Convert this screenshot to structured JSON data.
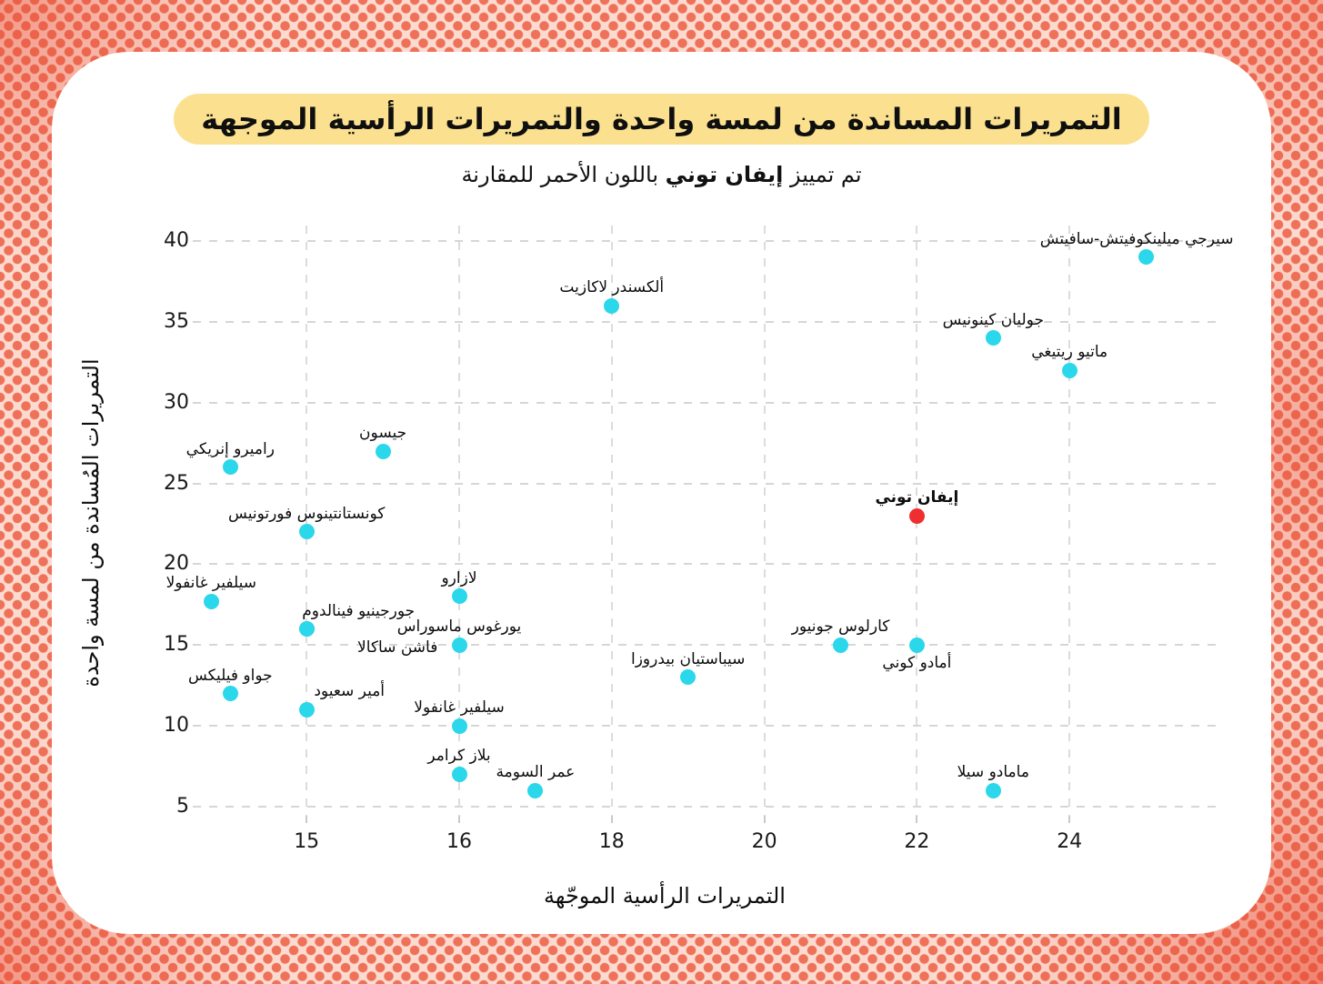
{
  "header": {
    "title": "التمريرات المساندة من لمسة واحدة والتمريرات الرأسية الموجهة",
    "title_highlight_color": "#fbe18f",
    "subtitle_prefix": "تم تمييز ",
    "subtitle_highlight": "إيفان توني",
    "subtitle_suffix": " باللون الأحمر للمقارنة"
  },
  "chart_data": {
    "type": "scatter",
    "xlabel": "التمريرات الرأسية الموجّهة",
    "ylabel": "التمريرات المُساندة من لمسة واحدة",
    "x_ticks": [
      15,
      16,
      18,
      20,
      22,
      24
    ],
    "y_ticks": [
      40,
      35,
      30,
      25,
      20,
      15,
      10,
      5
    ],
    "x_range_px_note": "ticks evenly spaced",
    "grid": "dashed",
    "legend_position": "none",
    "point_color": "#2bd7ea",
    "highlight_color": "#ef2f2f",
    "gridline_color": "#d6d6d6",
    "points": [
      {
        "name": "سيرجي ميلينكوفيتش-سافيتش",
        "x": 25,
        "y": 39,
        "dx": -10
      },
      {
        "name": "ماتيو ريتيغي",
        "x": 24,
        "y": 32
      },
      {
        "name": "جوليان كينونيس",
        "x": 23,
        "y": 34
      },
      {
        "name": "مامادو سيلا",
        "x": 23,
        "y": 6
      },
      {
        "name": "إيفان توني",
        "x": 22,
        "y": 23,
        "highlight": true
      },
      {
        "name": "أمادو كوني",
        "x": 22,
        "y": 15,
        "label_below": true
      },
      {
        "name": "كارلوس جونيور",
        "x": 21,
        "y": 15
      },
      {
        "name": "سيباستيان بيدروزا",
        "x": 19,
        "y": 13
      },
      {
        "name": "ألكسندر لاكازيت",
        "x": 18,
        "y": 36
      },
      {
        "name": "عمر السومة",
        "x": 17,
        "y": 6
      },
      {
        "name": "لازارو",
        "x": 16,
        "y": 18
      },
      {
        "name": "يورغوس ماسوراس",
        "x": 16,
        "y": 15
      },
      {
        "name": "سيلفير غانفولا",
        "x": 16,
        "y": 10
      },
      {
        "name": "بلاز كرامر",
        "x": 16,
        "y": 7
      },
      {
        "name": "جيسون",
        "x": 15,
        "y": 27
      },
      {
        "name": "كونستانتينوس فورتونيس",
        "x": 14,
        "y": 22
      },
      {
        "name": "فاشن ساكالا",
        "x": 14,
        "y": 16,
        "label_below": true,
        "dx": 100
      },
      {
        "name": "جورجينيو فينالدوم",
        "x": 14,
        "y": 16,
        "dx": 57
      },
      {
        "name": "أمير سعيود",
        "x": 14,
        "y": 11,
        "dx": 47
      },
      {
        "name": "راميرو إنريكي",
        "x": 13,
        "y": 26
      },
      {
        "name": "جواو فيليكس",
        "x": 13,
        "y": 12
      },
      {
        "name": "سيلفير غانفولا",
        "x": 12.75,
        "y": 17.7
      }
    ]
  }
}
